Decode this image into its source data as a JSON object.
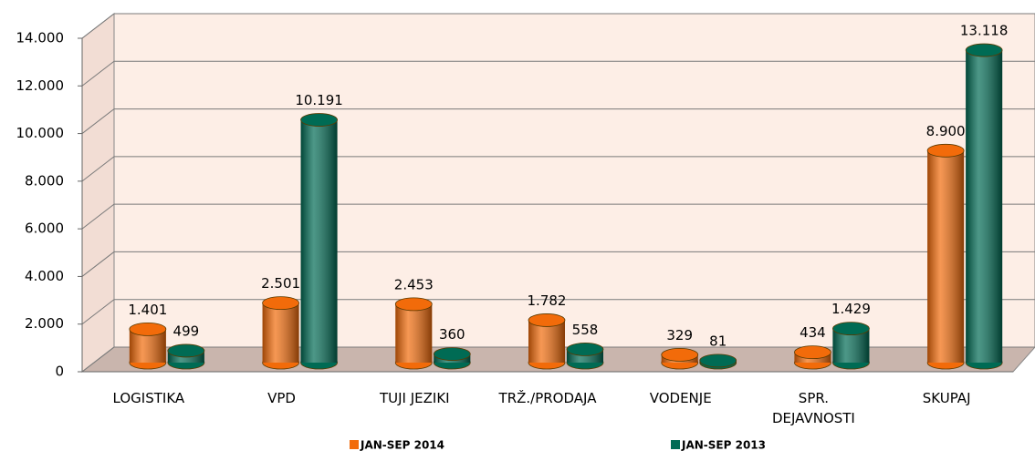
{
  "chart_data": {
    "type": "bar3d",
    "categories": [
      "LOGISTIKA",
      "VPD",
      "TUJI JEZIKI",
      "TRŽ./PRODAJA",
      "VODENJE",
      "SPR. DEJAVNOSTI",
      "SKUPAJ"
    ],
    "series": [
      {
        "name": "JAN-SEP 2014",
        "color": "#f26b0a",
        "values": [
          1401,
          2501,
          2453,
          1782,
          329,
          434,
          8900
        ],
        "value_labels": [
          "1.401",
          "2.501",
          "2.453",
          "1.782",
          "329",
          "434",
          "8.900"
        ]
      },
      {
        "name": "JAN-SEP 2013",
        "color": "#006b54",
        "values": [
          499,
          10191,
          360,
          558,
          81,
          1429,
          13118
        ],
        "value_labels": [
          "499",
          "10.191",
          "360",
          "558",
          "81",
          "1.429",
          "13.118"
        ]
      }
    ],
    "ylim": [
      0,
      14000
    ],
    "yticks": [
      0,
      {
        "value": 2000,
        "label": "2.000"
      },
      {
        "value": 4000,
        "label": "4.000"
      },
      {
        "value": 6000,
        "label": "6.000"
      },
      {
        "value": 8000,
        "label": "8.000"
      },
      {
        "value": 10000,
        "label": "10.000"
      },
      {
        "value": 12000,
        "label": "12.000"
      },
      {
        "value": 14000,
        "label": "14.000"
      }
    ],
    "grid": true
  }
}
